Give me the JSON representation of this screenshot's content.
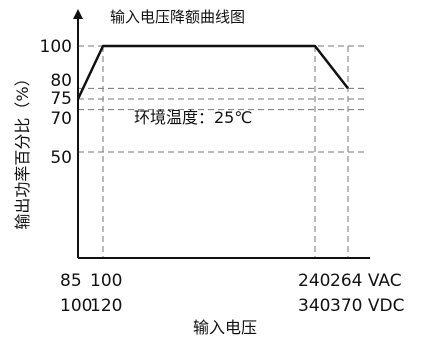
{
  "chart_data": {
    "type": "line",
    "title": "输入电压降额曲线图",
    "xlabel": "输入电压",
    "ylabel": "输出功率百分比（%）",
    "x_ticks_vac": [
      "85",
      "100",
      "240",
      "264 VAC"
    ],
    "x_ticks_vdc": [
      "100",
      "120",
      "340",
      "370 VDC"
    ],
    "y_ticks": [
      "100",
      "80",
      "75",
      "70",
      "50"
    ],
    "annotation": "环境温度：25℃",
    "x_unit": "VAC",
    "xlim": [
      85,
      264
    ],
    "ylim": [
      0,
      100
    ],
    "grid": "dashed",
    "series": [
      {
        "x": [
          85,
          100,
          240,
          264
        ],
        "y": [
          75,
          100,
          100,
          80
        ]
      }
    ]
  }
}
